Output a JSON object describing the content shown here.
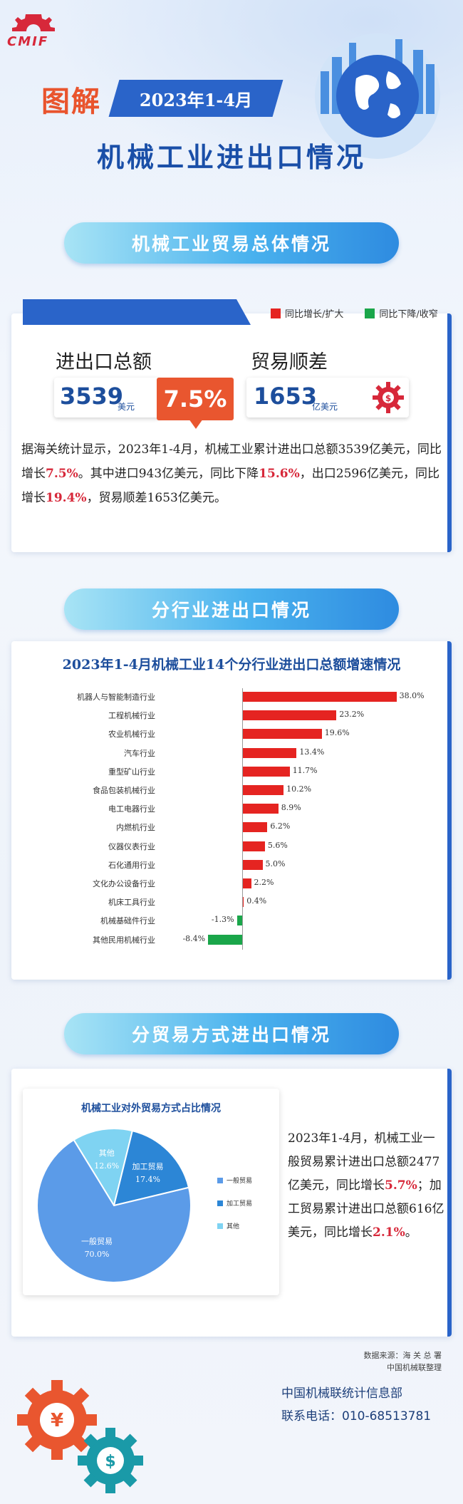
{
  "header": {
    "logo_text": "CMIF",
    "tujie": "图解",
    "date": "2023年1-4月",
    "title": "机械工业进出口情况"
  },
  "section1": {
    "title": "机械工业贸易总体情况",
    "legend": [
      {
        "label": "同比增长/扩大",
        "color": "#e52421"
      },
      {
        "label": "同比下降/收窄",
        "color": "#1aa64a"
      }
    ],
    "total_label": "进出口总额",
    "total_value": "3539",
    "total_unit": "美元",
    "total_growth": "7.5%",
    "surplus_label": "贸易顺差",
    "surplus_value": "1653",
    "surplus_unit": "亿美元",
    "para": [
      {
        "t": "据海关统计显示，2023年1-4月，机械工业累计进出口总额3539亿美元，同比增长"
      },
      {
        "t": "7.5%",
        "red": true
      },
      {
        "t": "。其中进口943亿美元，同比下降"
      },
      {
        "t": "15.6%",
        "red": true
      },
      {
        "t": "，出口2596亿美元，同比增长"
      },
      {
        "t": "19.4%",
        "red": true
      },
      {
        "t": "，贸易顺差1653亿美元。"
      }
    ]
  },
  "section2": {
    "title": "分行业进出口情况",
    "chart_data": {
      "type": "bar",
      "orientation": "horizontal",
      "title": "2023年1-4月机械工业14个分行业进出口总额增速情况",
      "categories": [
        "机器人与智能制造行业",
        "工程机械行业",
        "农业机械行业",
        "汽车行业",
        "重型矿山行业",
        "食品包装机械行业",
        "电工电器行业",
        "内燃机行业",
        "仪器仪表行业",
        "石化通用行业",
        "文化办公设备行业",
        "机床工具行业",
        "机械基础件行业",
        "其他民用机械行业"
      ],
      "values": [
        38.0,
        23.2,
        19.6,
        13.4,
        11.7,
        10.2,
        8.9,
        6.2,
        5.6,
        5.0,
        2.2,
        0.4,
        -1.3,
        -8.4
      ],
      "value_labels": [
        "38.0%",
        "23.2%",
        "19.6%",
        "13.4%",
        "11.7%",
        "10.2%",
        "8.9%",
        "6.2%",
        "5.6%",
        "5.0%",
        "2.2%",
        "0.4%",
        "-1.3%",
        "-8.4%"
      ],
      "positive_color": "#e52421",
      "negative_color": "#1aa64a"
    }
  },
  "section3": {
    "title": "分贸易方式进出口情况",
    "pie": {
      "type": "pie",
      "title": "机械工业对外贸易方式占比情况",
      "slices": [
        {
          "name": "一般贸易",
          "value": 70.0,
          "label": "70.0%",
          "color": "#5b9be8"
        },
        {
          "name": "加工贸易",
          "value": 17.4,
          "label": "17.4%",
          "color": "#2c86d6"
        },
        {
          "name": "其他",
          "value": 12.6,
          "label": "12.6%",
          "color": "#7fd3f2"
        }
      ]
    },
    "para": [
      {
        "t": "2023年1-4月，机械工业一般贸易累计进出口总额2477亿美元，同比增长"
      },
      {
        "t": "5.7%",
        "red": true
      },
      {
        "t": "；加工贸易累计进出口总额616亿美元，同比增长"
      },
      {
        "t": "2.1%",
        "red": true
      },
      {
        "t": "。"
      }
    ]
  },
  "footer": {
    "source1": "数据来源：海 关 总 署",
    "source2": "中国机械联整理",
    "org": "中国机械联统计信息部",
    "contact": "联系电话：010-68513781"
  }
}
